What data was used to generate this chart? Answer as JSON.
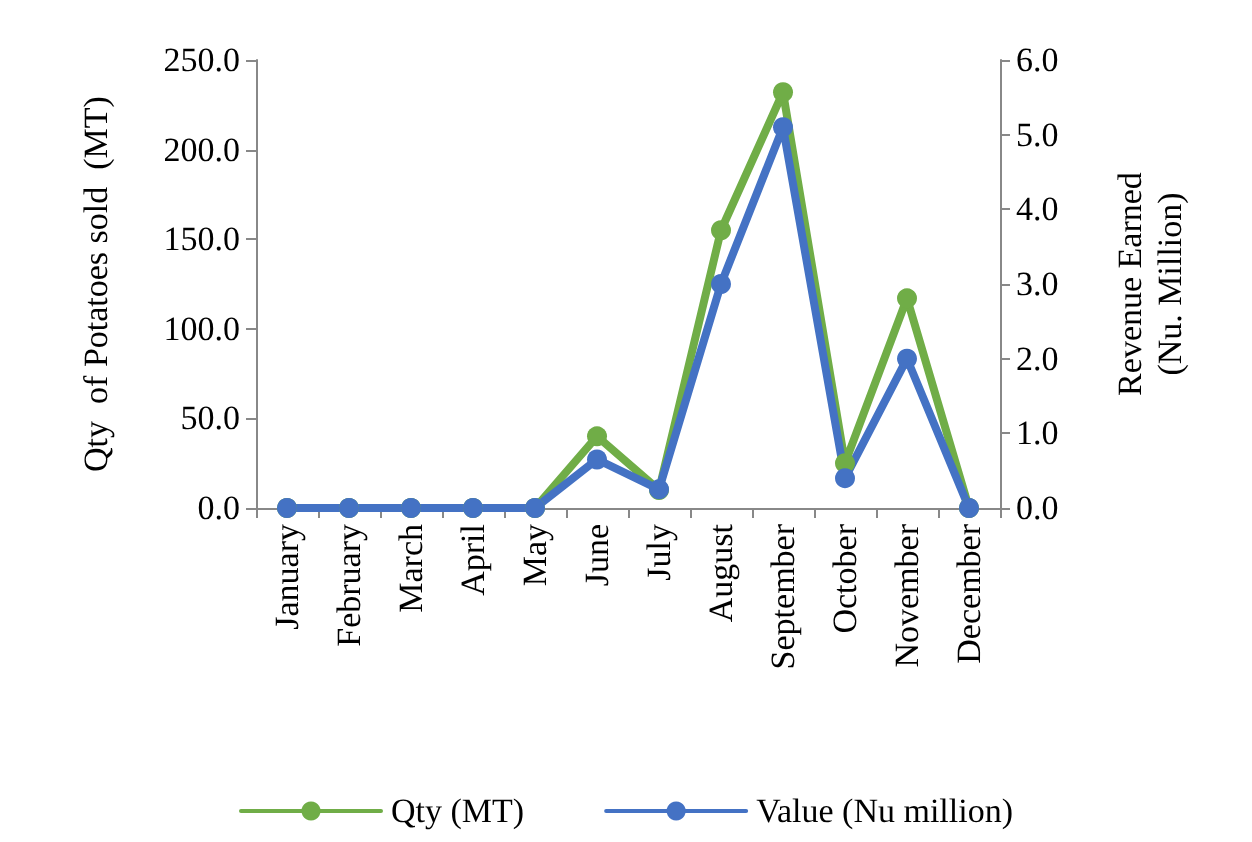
{
  "chart_data": {
    "type": "line",
    "ylabel": "Qty  of Potatoes sold  (MT)",
    "y2label": "Revenue Earned\n(Nu. Million)",
    "categories": [
      "January",
      "February",
      "March",
      "April",
      "May",
      "June",
      "July",
      "August",
      "September",
      "October",
      "November",
      "December"
    ],
    "series": [
      {
        "name": "Qty (MT)",
        "color": "#70ad47",
        "values": [
          0,
          0,
          0,
          0,
          0,
          40,
          10,
          155,
          232,
          25,
          117,
          0
        ]
      },
      {
        "name": "Value (Nu million)",
        "color": "#4472c4",
        "axis": "y2",
        "values": [
          0,
          0,
          0,
          0,
          0,
          0.65,
          0.25,
          3.0,
          5.1,
          0.4,
          2.0,
          0
        ]
      }
    ],
    "ylim": [
      0,
      250
    ],
    "yticks": [
      {
        "value": 0,
        "label": "0.0"
      },
      {
        "value": 50,
        "label": "50.0"
      },
      {
        "value": 100,
        "label": "100.0"
      },
      {
        "value": 150,
        "label": "150.0"
      },
      {
        "value": 200,
        "label": "200.0"
      },
      {
        "value": 250,
        "label": "250.0"
      }
    ],
    "y2lim": [
      0,
      6
    ],
    "y2ticks": [
      {
        "value": 0,
        "label": "0.0"
      },
      {
        "value": 1,
        "label": "1.0"
      },
      {
        "value": 2,
        "label": "2.0"
      },
      {
        "value": 3,
        "label": "3.0"
      },
      {
        "value": 4,
        "label": "4.0"
      },
      {
        "value": 5,
        "label": "5.0"
      },
      {
        "value": 6,
        "label": "6.0"
      }
    ],
    "grid": false,
    "legend": "bottom",
    "marker": "circle",
    "line_style": "solid"
  }
}
